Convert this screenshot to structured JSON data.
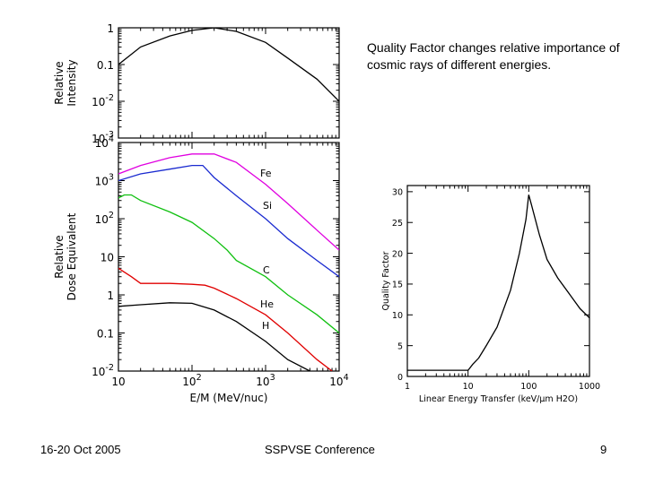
{
  "slide": {
    "text": "Quality Factor changes relative importance of cosmic rays of different energies.",
    "footer_left": "16-20 Oct 2005",
    "footer_center": "SSPVSE Conference",
    "page_number": "9"
  },
  "chart_data": [
    {
      "type": "line",
      "title": "",
      "xlabel": "",
      "ylabel": "Relative Intensity",
      "xscale": "log",
      "yscale": "log",
      "xlim": [
        10,
        10000
      ],
      "ylim": [
        0.001,
        1
      ],
      "y_ticks": [
        "1",
        "0.1",
        "10^-2",
        "10^-3"
      ],
      "series": [
        {
          "x": [
            10,
            20,
            50,
            100,
            200,
            400,
            1000,
            2000,
            5000,
            10000
          ],
          "y": [
            0.1,
            0.3,
            0.6,
            0.85,
            1.0,
            0.8,
            0.4,
            0.15,
            0.04,
            0.01
          ]
        }
      ]
    },
    {
      "type": "line",
      "title": "",
      "xlabel": "E/M (MeV/nuc)",
      "ylabel": "Relative Dose Equivalent",
      "xscale": "log",
      "yscale": "log",
      "xlim": [
        10,
        10000
      ],
      "ylim": [
        0.01,
        10000
      ],
      "x_ticks": [
        "10",
        "10^2",
        "10^3",
        "10^4"
      ],
      "y_ticks": [
        "10^4",
        "10^3",
        "10^2",
        "10",
        "1",
        "0.1",
        "10^-2"
      ],
      "series": [
        {
          "name": "Fe",
          "color": "#e000e0",
          "x": [
            10,
            20,
            50,
            100,
            200,
            400,
            1000,
            2000,
            5000,
            10000
          ],
          "y": [
            1500,
            2500,
            4000,
            5000,
            5000,
            3000,
            800,
            250,
            50,
            15
          ]
        },
        {
          "name": "Si",
          "color": "#1a2ad0",
          "x": [
            10,
            20,
            50,
            100,
            140,
            200,
            400,
            1000,
            2000,
            5000,
            10000
          ],
          "y": [
            1000,
            1500,
            2000,
            2500,
            2500,
            1200,
            400,
            100,
            30,
            8,
            3
          ]
        },
        {
          "name": "C",
          "color": "#10c010",
          "x": [
            10,
            12,
            15,
            20,
            50,
            100,
            200,
            300,
            400,
            1000,
            2000,
            5000,
            10000
          ],
          "y": [
            350,
            420,
            420,
            300,
            150,
            80,
            30,
            15,
            8,
            3,
            1,
            0.3,
            0.1
          ]
        },
        {
          "name": "He",
          "color": "#e00000",
          "x": [
            10,
            15,
            20,
            50,
            100,
            150,
            200,
            400,
            1000,
            2000,
            5000,
            8000
          ],
          "y": [
            5,
            3,
            2,
            2,
            1.9,
            1.8,
            1.5,
            0.8,
            0.3,
            0.1,
            0.02,
            0.01
          ]
        },
        {
          "name": "H",
          "color": "#000000",
          "x": [
            10,
            20,
            50,
            100,
            200,
            400,
            1000,
            2000,
            4000
          ],
          "y": [
            0.5,
            0.55,
            0.62,
            0.6,
            0.4,
            0.2,
            0.06,
            0.02,
            0.01
          ]
        }
      ]
    },
    {
      "type": "line",
      "title": "",
      "xlabel": "Linear Energy Transfer (keV/µm H2O)",
      "ylabel": "Quality Factor",
      "xscale": "log",
      "yscale": "linear",
      "xlim": [
        1,
        1000
      ],
      "ylim": [
        0,
        31
      ],
      "x_ticks": [
        "1",
        "10",
        "100",
        "1000"
      ],
      "y_ticks": [
        "0",
        "5",
        "10",
        "15",
        "20",
        "25",
        "30"
      ],
      "series": [
        {
          "x": [
            1,
            10,
            12,
            15,
            20,
            30,
            50,
            70,
            90,
            100,
            110,
            150,
            200,
            300,
            500,
            700,
            1000
          ],
          "y": [
            1,
            1,
            2,
            3,
            5,
            8,
            14,
            20,
            25.5,
            29.5,
            28,
            23,
            19,
            16,
            13,
            11,
            9.5
          ]
        }
      ]
    }
  ]
}
